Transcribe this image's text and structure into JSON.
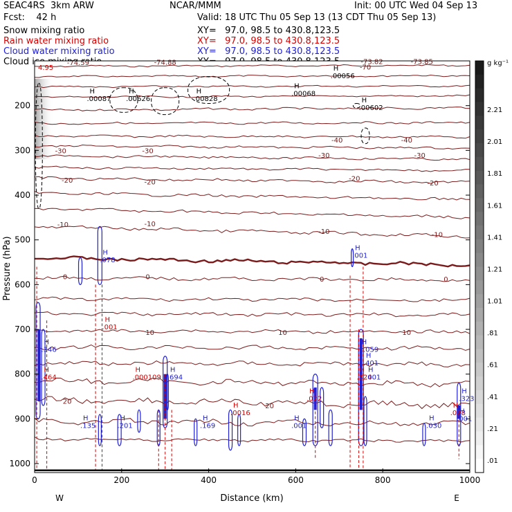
{
  "header": {
    "model": "SEAC4RS  3km ARW",
    "org": "NCAR/MMM",
    "init": "Init: 00 UTC Wed 04 Sep 13",
    "fcst": "Fcst:    42 h",
    "valid": "Valid: 18 UTC Thu 05 Sep 13 (13 CDT Thu 05 Sep 13)",
    "fields": [
      {
        "label": "Snow mixing ratio",
        "color": "#000000",
        "xy": "XY=   97.0, 98.5 to 430.8,123.5"
      },
      {
        "label": "Rain water mixing ratio",
        "color": "#d40000",
        "xy": "XY=   97.0, 98.5 to 430.8,123.5"
      },
      {
        "label": "Cloud water mixing ratio",
        "color": "#1f1fd4",
        "xy": "XY=   97.0, 98.5 to 430.8,123.5"
      },
      {
        "label": "Cloud ice mixing ratio",
        "color": "#000000",
        "xy": "XY=   97.0, 98.5 to 430.8,123.5"
      }
    ]
  },
  "chart_data": {
    "type": "contour",
    "xlabel": "Distance (km)",
    "ylabel": "Pressure (hPa)",
    "xlim": [
      0,
      1000
    ],
    "ylim": [
      1020,
      100
    ],
    "x_ticks": [
      0,
      200,
      400,
      600,
      800,
      1000
    ],
    "y_ticks": [
      200,
      300,
      400,
      500,
      600,
      700,
      800,
      900,
      1000
    ],
    "endpoints": {
      "left": "W",
      "right": "E"
    },
    "colorbar": {
      "unit": "g kg⁻¹",
      "labels": [
        "2.21",
        "2.01",
        "1.81",
        "1.61",
        "1.41",
        "1.21",
        "1.01",
        ".81",
        ".61",
        ".41",
        ".21",
        ".01"
      ]
    },
    "temperature_contour_levels": [
      -70,
      -60,
      -50,
      -40,
      -30,
      -20,
      -10,
      0,
      10,
      20
    ],
    "temperature_labels": [
      {
        "text": "-74.59",
        "x": 100,
        "p": 103
      },
      {
        "text": "-74.88",
        "x": 300,
        "p": 102
      },
      {
        "text": "-73.82",
        "x": 775,
        "p": 101
      },
      {
        "text": "-73.85",
        "x": 890,
        "p": 101
      },
      {
        "text": "-70",
        "x": 760,
        "p": 113
      },
      {
        "text": "-40",
        "x": 695,
        "p": 276
      },
      {
        "text": "-40",
        "x": 855,
        "p": 276
      },
      {
        "text": "-30",
        "x": 60,
        "p": 300
      },
      {
        "text": "-30",
        "x": 260,
        "p": 300
      },
      {
        "text": "-30",
        "x": 665,
        "p": 310
      },
      {
        "text": "-30",
        "x": 885,
        "p": 310
      },
      {
        "text": "-20",
        "x": 75,
        "p": 366
      },
      {
        "text": "-20",
        "x": 265,
        "p": 370
      },
      {
        "text": "-20",
        "x": 735,
        "p": 362
      },
      {
        "text": "-20",
        "x": 915,
        "p": 372
      },
      {
        "text": "-10",
        "x": 65,
        "p": 465
      },
      {
        "text": "-10",
        "x": 265,
        "p": 463
      },
      {
        "text": "-10",
        "x": 665,
        "p": 480
      },
      {
        "text": "-10",
        "x": 925,
        "p": 487
      },
      {
        "text": "0",
        "x": 70,
        "p": 582
      },
      {
        "text": "0",
        "x": 260,
        "p": 582
      },
      {
        "text": "0",
        "x": 660,
        "p": 587
      },
      {
        "text": "0",
        "x": 945,
        "p": 587
      },
      {
        "text": "10",
        "x": 265,
        "p": 706
      },
      {
        "text": "10",
        "x": 570,
        "p": 706
      },
      {
        "text": "10",
        "x": 855,
        "p": 706
      },
      {
        "text": "20",
        "x": 75,
        "p": 860
      },
      {
        "text": "20",
        "x": 540,
        "p": 870
      }
    ],
    "snow_max_labels": [
      {
        "text": ".00087",
        "x": 120,
        "p": 190
      },
      {
        "text": ".00626",
        "x": 210,
        "p": 190
      },
      {
        "text": ".00828",
        "x": 365,
        "p": 190
      },
      {
        "text": ".00068",
        "x": 590,
        "p": 178
      },
      {
        "text": ".00056",
        "x": 680,
        "p": 139
      },
      {
        "text": ".00602",
        "x": 745,
        "p": 210
      }
    ],
    "rain_max_labels": [
      {
        "text": ".464",
        "x": 15,
        "p": 812
      },
      {
        "text": ".000109",
        "x": 225,
        "p": 812
      },
      {
        "text": ".001",
        "x": 155,
        "p": 700
      },
      {
        "text": ".0016",
        "x": 450,
        "p": 892
      },
      {
        "text": ".022",
        "x": 625,
        "p": 860
      },
      {
        "text": ".324",
        "x": 740,
        "p": 812
      },
      {
        "text": ".028",
        "x": 955,
        "p": 892
      }
    ],
    "cloud_max_labels": [
      {
        "text": ".346",
        "x": 15,
        "p": 750
      },
      {
        "text": ".078",
        "x": 150,
        "p": 550
      },
      {
        "text": ".001",
        "x": 730,
        "p": 540
      },
      {
        "text": "1.059",
        "x": 745,
        "p": 750
      },
      {
        "text": ".401",
        "x": 755,
        "p": 780
      },
      {
        "text": ".001",
        "x": 760,
        "p": 812
      },
      {
        "text": ".694",
        "x": 305,
        "p": 812
      },
      {
        "text": ".135",
        "x": 105,
        "p": 920
      },
      {
        "text": ".201",
        "x": 190,
        "p": 920
      },
      {
        "text": ".169",
        "x": 380,
        "p": 920
      },
      {
        "text": ".001",
        "x": 590,
        "p": 920
      },
      {
        "text": ".030",
        "x": 900,
        "p": 920
      },
      {
        "text": ".323",
        "x": 975,
        "p": 860
      },
      {
        "text": ".001",
        "x": 970,
        "p": 905
      }
    ],
    "init_corner_label": "4.95"
  }
}
